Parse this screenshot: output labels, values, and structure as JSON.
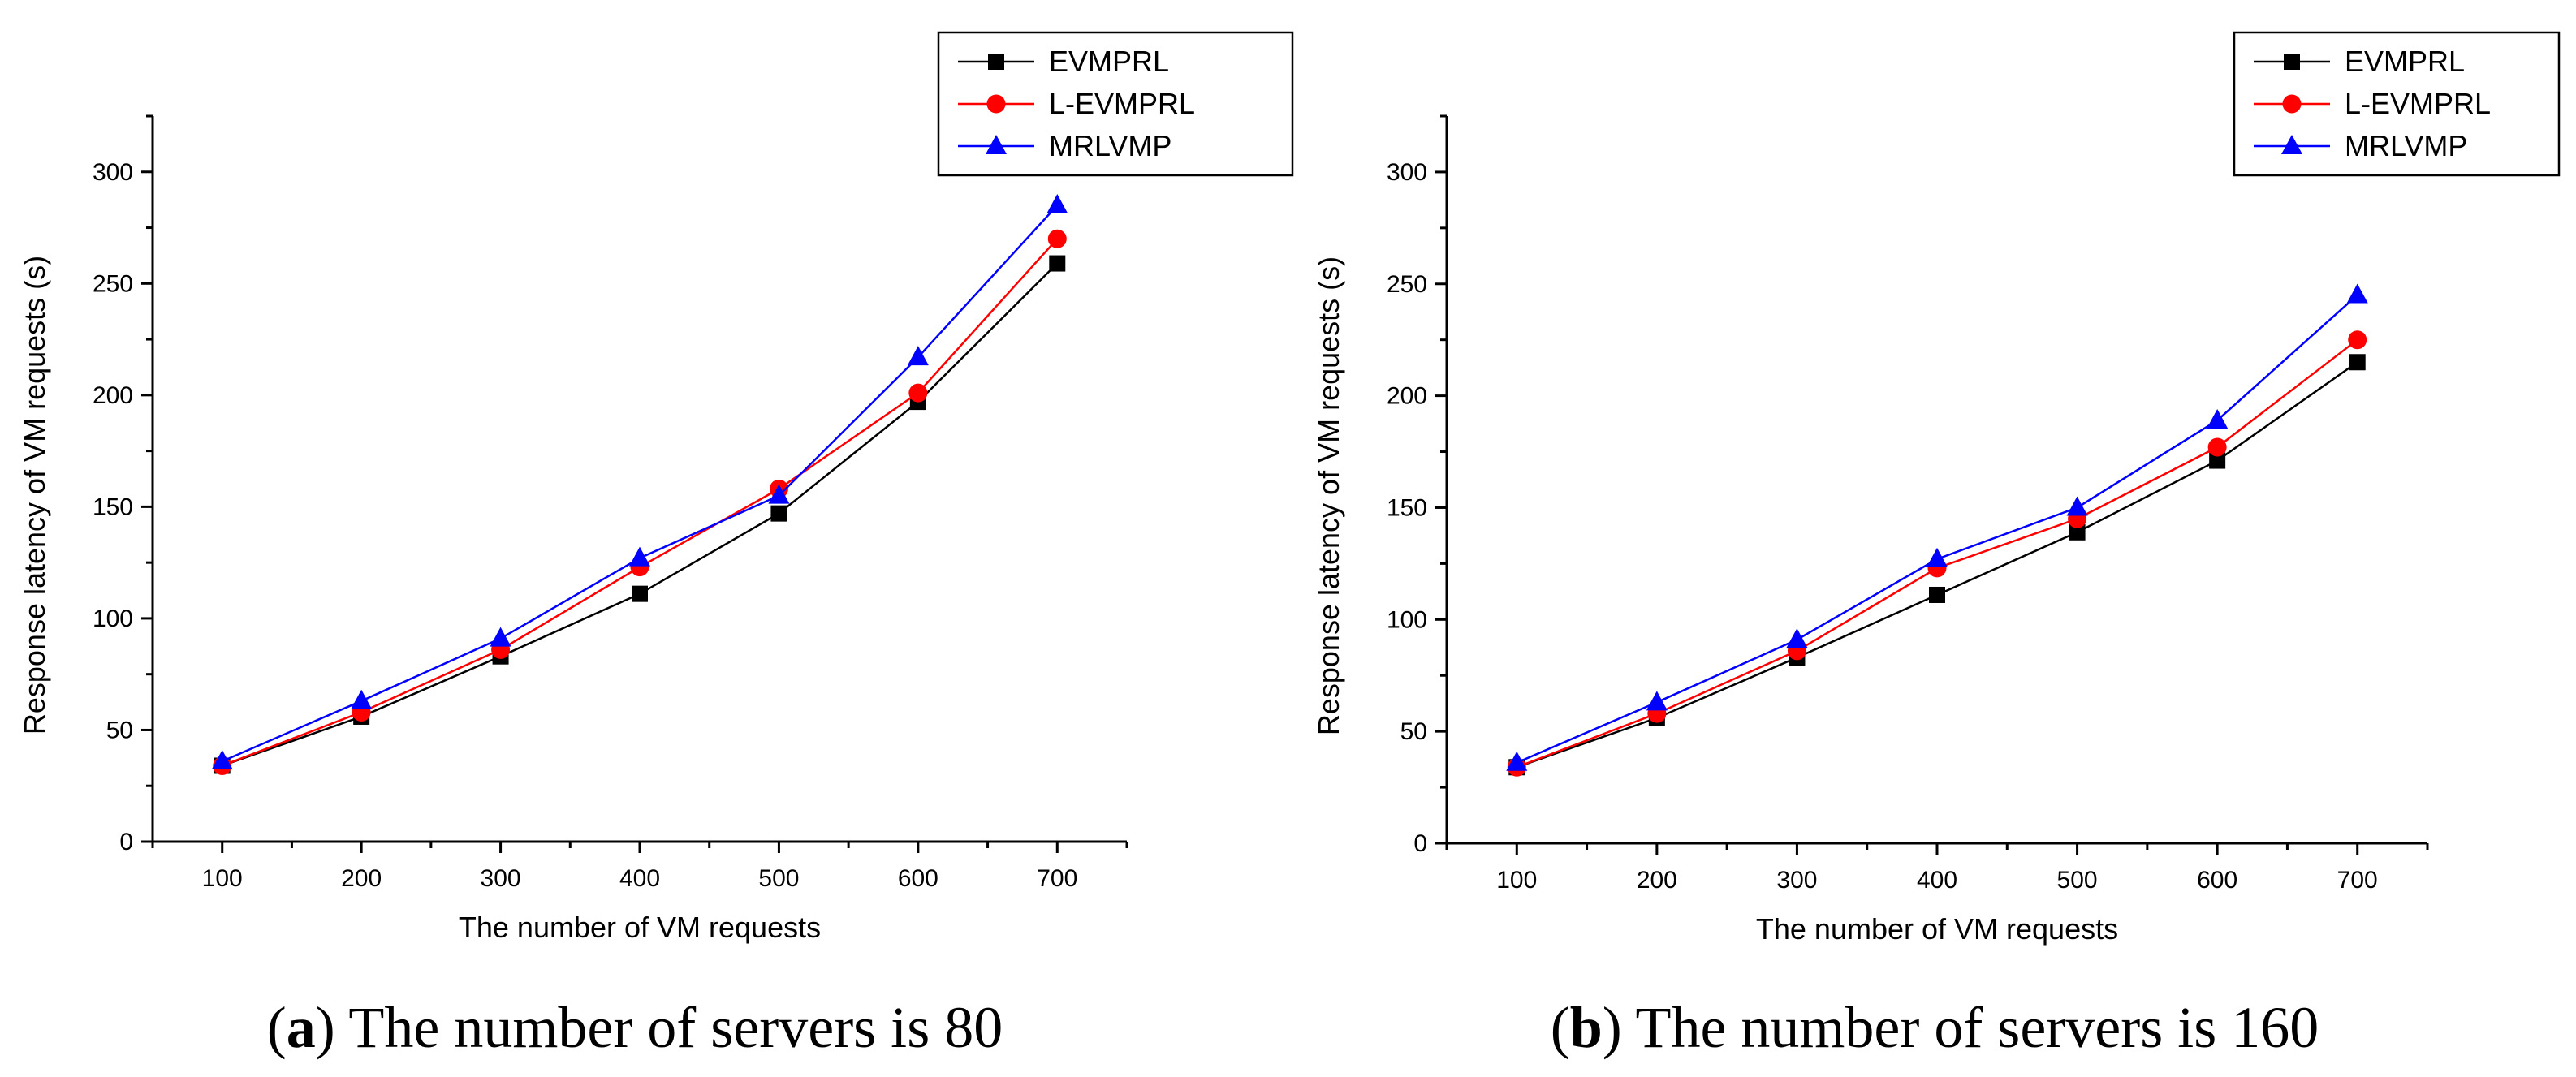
{
  "chart_data": [
    {
      "type": "line",
      "xlabel": "The number of VM requests",
      "ylabel": "Response latency of VM requests (s)",
      "x": [
        100,
        200,
        300,
        400,
        500,
        600,
        700
      ],
      "xlim": [
        50,
        750
      ],
      "ylim": [
        0,
        325
      ],
      "yticks": [
        0,
        50,
        100,
        150,
        200,
        250,
        300
      ],
      "caption_label": "a",
      "caption_text": "The number of servers is 80",
      "legend_position": "top-right",
      "series": [
        {
          "name": "EVMPRL",
          "color": "#000000",
          "marker": "square",
          "values": [
            34,
            56,
            83,
            111,
            147,
            197,
            259
          ]
        },
        {
          "name": "L-EVMPRL",
          "color": "#ff0000",
          "marker": "circle",
          "values": [
            34,
            58,
            86,
            123,
            158,
            201,
            270
          ]
        },
        {
          "name": "MRLVMP",
          "color": "#0000ff",
          "marker": "triangle",
          "values": [
            36,
            63,
            91,
            127,
            155,
            217,
            285
          ]
        }
      ]
    },
    {
      "type": "line",
      "xlabel": "The number of VM requests",
      "ylabel": "Response latency of VM requests (s)",
      "x": [
        100,
        200,
        300,
        400,
        500,
        600,
        700
      ],
      "xlim": [
        50,
        750
      ],
      "ylim": [
        0,
        325
      ],
      "yticks": [
        0,
        50,
        100,
        150,
        200,
        250,
        300
      ],
      "caption_label": "b",
      "caption_text": "The number of servers is 160",
      "legend_position": "top-right",
      "series": [
        {
          "name": "EVMPRL",
          "color": "#000000",
          "marker": "square",
          "values": [
            34,
            56,
            83,
            111,
            139,
            171,
            215
          ]
        },
        {
          "name": "L-EVMPRL",
          "color": "#ff0000",
          "marker": "circle",
          "values": [
            34,
            58,
            86,
            123,
            145,
            177,
            225
          ]
        },
        {
          "name": "MRLVMP",
          "color": "#0000ff",
          "marker": "triangle",
          "values": [
            36,
            63,
            91,
            127,
            150,
            189,
            245
          ]
        }
      ]
    }
  ]
}
